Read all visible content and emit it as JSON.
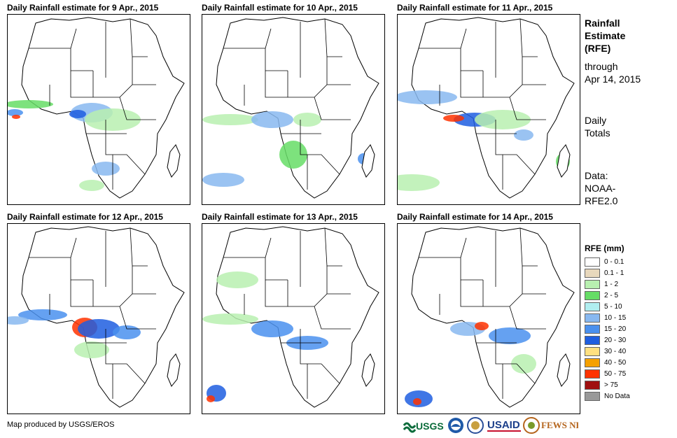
{
  "panels": [
    {
      "title": "Daily Rainfall estimate for 9 Apr., 2015"
    },
    {
      "title": "Daily Rainfall estimate for 10 Apr., 2015"
    },
    {
      "title": "Daily Rainfall estimate for 11 Apr., 2015"
    },
    {
      "title": "Daily Rainfall estimate for 12 Apr., 2015"
    },
    {
      "title": "Daily Rainfall estimate for 13 Apr., 2015"
    },
    {
      "title": "Daily Rainfall estimate for 14 Apr., 2015"
    }
  ],
  "side": {
    "title_line1": "Rainfall",
    "title_line2": "Estimate",
    "title_line3": "(RFE)",
    "through_line1": "through",
    "through_line2": "Apr 14, 2015",
    "totals_line1": "Daily",
    "totals_line2": "Totals",
    "data_line1": "Data:",
    "data_line2": "NOAA-",
    "data_line3": "RFE2.0"
  },
  "legend": {
    "title": "RFE (mm)",
    "items": [
      {
        "label": "0 - 0.1",
        "color": "#ffffff"
      },
      {
        "label": "0.1 - 1",
        "color": "#e8d8bc"
      },
      {
        "label": "1 - 2",
        "color": "#b8f0b0"
      },
      {
        "label": "2 - 5",
        "color": "#66dd66"
      },
      {
        "label": "5 - 10",
        "color": "#b0eef0"
      },
      {
        "label": "10 - 15",
        "color": "#88b8f0"
      },
      {
        "label": "15 - 20",
        "color": "#4a90ee"
      },
      {
        "label": "20 - 30",
        "color": "#1f5ee0"
      },
      {
        "label": "30 - 40",
        "color": "#ffe080"
      },
      {
        "label": "40 - 50",
        "color": "#f5a000"
      },
      {
        "label": "50 - 75",
        "color": "#ff3300"
      },
      {
        "label": "> 75",
        "color": "#a01010"
      },
      {
        "label": "No Data",
        "color": "#999999"
      }
    ]
  },
  "footer": {
    "credit": "Map produced by USGS/EROS"
  },
  "logos": {
    "usgs": "USGS",
    "noaa": "NOAA",
    "usaid": "USAID",
    "fews": "FEWS NET"
  }
}
